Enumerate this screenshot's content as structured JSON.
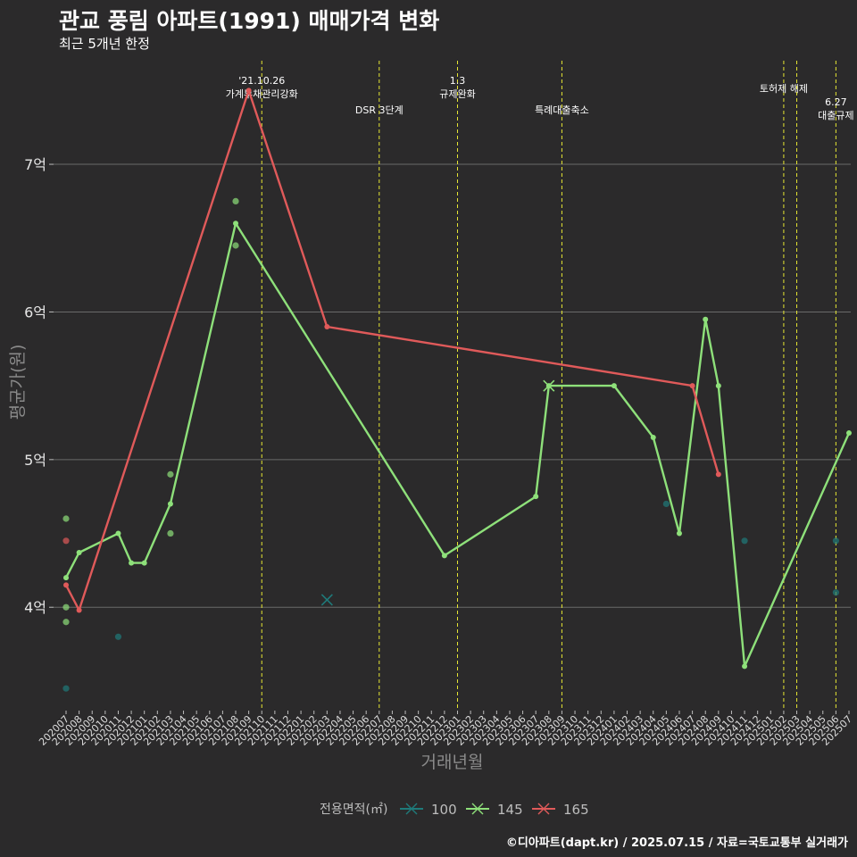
{
  "title": "관교 풍림 아파트(1991) 매매가격 변화",
  "subtitle": "최근 5개년 한정",
  "caption": "©디아파트(dapt.kr) / 2025.07.15 / 자료=국토교통부 실거래가",
  "chart_data": {
    "type": "line",
    "xlabel": "거래년월",
    "ylabel": "평균가(원)",
    "x": [
      "202007",
      "202008",
      "202009",
      "202010",
      "202011",
      "202012",
      "202101",
      "202102",
      "202103",
      "202104",
      "202105",
      "202106",
      "202107",
      "202108",
      "202109",
      "202110",
      "202111",
      "202112",
      "202201",
      "202202",
      "202203",
      "202204",
      "202205",
      "202206",
      "202207",
      "202208",
      "202209",
      "202210",
      "202211",
      "202212",
      "202301",
      "202302",
      "202303",
      "202304",
      "202305",
      "202306",
      "202307",
      "202308",
      "202309",
      "202310",
      "202311",
      "202312",
      "202401",
      "202402",
      "202403",
      "202404",
      "202405",
      "202406",
      "202407",
      "202408",
      "202409",
      "202410",
      "202411",
      "202412",
      "202501",
      "202502",
      "202503",
      "202504",
      "202505",
      "202506",
      "202507"
    ],
    "y_ticks": [
      {
        "value": 4,
        "label": "4억"
      },
      {
        "value": 5,
        "label": "5억"
      },
      {
        "value": 6,
        "label": "6억"
      },
      {
        "value": 7,
        "label": "7억"
      }
    ],
    "ylim": [
      3.3,
      7.75
    ],
    "legend": {
      "title": "전용면적(㎡)",
      "placement": "bottom",
      "entries": [
        {
          "label": "100",
          "color": "#1f7a7a"
        },
        {
          "label": "145",
          "color": "#8ee07a"
        },
        {
          "label": "165",
          "color": "#e05a5a"
        }
      ]
    },
    "series": [
      {
        "name": "145",
        "color": "#8ee07a",
        "points": [
          [
            "202007",
            4.2
          ],
          [
            "202008",
            4.37
          ],
          [
            "202011",
            4.5
          ],
          [
            "202012",
            4.3
          ],
          [
            "202101",
            4.3
          ],
          [
            "202103",
            4.7
          ],
          [
            "202108",
            6.6
          ],
          [
            "202212",
            4.35
          ],
          [
            "202307",
            4.75
          ],
          [
            "202308",
            5.5
          ],
          [
            "202401",
            5.5
          ],
          [
            "202404",
            5.15
          ],
          [
            "202406",
            4.5
          ],
          [
            "202408",
            5.95
          ],
          [
            "202409",
            5.5
          ],
          [
            "202411",
            3.6
          ],
          [
            "202507",
            5.18
          ]
        ]
      },
      {
        "name": "165",
        "color": "#e05a5a",
        "points": [
          [
            "202007",
            4.15
          ],
          [
            "202008",
            3.98
          ],
          [
            "202109",
            7.5
          ],
          [
            "202203",
            5.9
          ],
          [
            "202407",
            5.5
          ],
          [
            "202409",
            4.9
          ]
        ]
      }
    ],
    "scatter": [
      {
        "series": "100",
        "color": "#1f7a7a",
        "points": [
          [
            "202007",
            3.45
          ],
          [
            "202011",
            3.8
          ],
          [
            "202405",
            4.7
          ],
          [
            "202411",
            4.45
          ],
          [
            "202506",
            4.45
          ],
          [
            "202506",
            4.1
          ]
        ]
      },
      {
        "series": "145",
        "color": "#8ee07a",
        "points": [
          [
            "202007",
            4.6
          ],
          [
            "202007",
            3.9
          ],
          [
            "202007",
            4.0
          ],
          [
            "202103",
            4.9
          ],
          [
            "202103",
            4.5
          ],
          [
            "202108",
            6.75
          ],
          [
            "202108",
            6.45
          ]
        ]
      },
      {
        "series": "165",
        "color": "#e05a5a",
        "points": [
          [
            "202007",
            4.45
          ]
        ]
      }
    ],
    "cross_markers": [
      {
        "series": "100",
        "color": "#1f7a7a",
        "x": "202203",
        "y": 4.05
      },
      {
        "series": "145",
        "color": "#8ee07a",
        "x": "202308",
        "y": 5.5
      }
    ],
    "events": [
      {
        "x": "202110",
        "lines": [
          "'21.10.26",
          "가계부채관리강화"
        ]
      },
      {
        "x": "202207",
        "lines": [
          "DSR 3단계"
        ]
      },
      {
        "x": "202301",
        "lines": [
          "1.3",
          "규제완화"
        ]
      },
      {
        "x": "202309",
        "lines": [
          "특례대출축소"
        ]
      },
      {
        "x": "202502",
        "lines": [
          "토허제 해제"
        ]
      },
      {
        "x": "202503",
        "lines": []
      },
      {
        "x": "202506",
        "lines": [
          "6.27",
          "대출규제"
        ]
      }
    ]
  }
}
